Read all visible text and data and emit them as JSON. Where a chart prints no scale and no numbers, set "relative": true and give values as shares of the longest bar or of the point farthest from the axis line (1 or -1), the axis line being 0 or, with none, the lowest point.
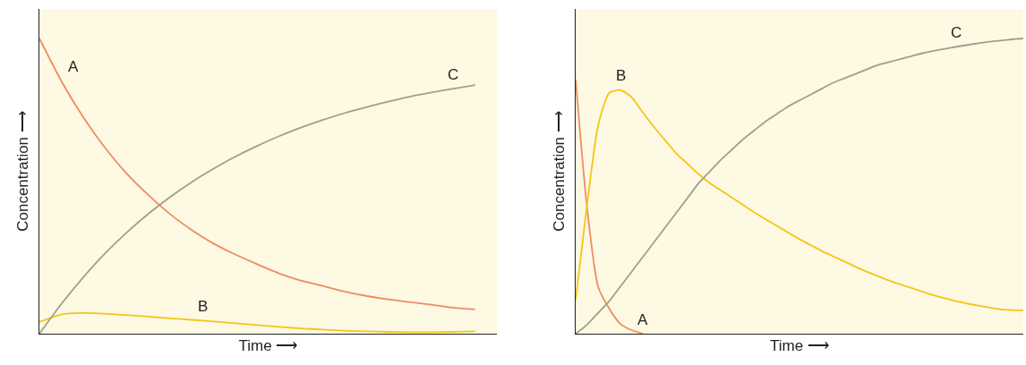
{
  "chart_data": [
    {
      "type": "line",
      "relative": true,
      "xlabel": "Time ⟶",
      "ylabel": "Concentration ⟶",
      "categories": [
        null,
        null,
        null,
        null,
        null,
        null,
        null,
        null,
        null,
        null,
        null,
        null,
        null,
        null,
        null,
        null,
        null,
        null,
        null,
        null,
        null
      ],
      "series": [
        {
          "name": "A",
          "color": "#f08a64",
          "values": [
            1,
            0.857,
            0.735,
            0.631,
            0.543,
            0.47,
            0.405,
            0.351,
            0.305,
            0.268,
            0.235,
            0.204,
            0.18,
            0.162,
            0.143,
            0.128,
            0.116,
            0.107,
            0.098,
            0.088,
            0.082
          ]
        },
        {
          "name": "B",
          "color": "#f5c518",
          "values": [
            0.04,
            0.065,
            0.07,
            0.068,
            0.063,
            0.058,
            0.052,
            0.047,
            0.041,
            0.035,
            0.029,
            0.023,
            0.018,
            0.014,
            0.01,
            0.008,
            0.006,
            0.005,
            0.005,
            0.006,
            0.008
          ]
        },
        {
          "name": "C",
          "color": "#a09f8a",
          "values": [
            0,
            0.1,
            0.19,
            0.271,
            0.342,
            0.406,
            0.463,
            0.514,
            0.559,
            0.6,
            0.636,
            0.669,
            0.698,
            0.724,
            0.747,
            0.767,
            0.786,
            0.803,
            0.817,
            0.83,
            0.842
          ]
        }
      ]
    },
    {
      "type": "line",
      "relative": true,
      "xlabel": "Time ⟶",
      "ylabel": "Concentration ⟶",
      "categories": [
        null,
        null,
        null,
        null,
        null,
        null,
        null,
        null,
        null,
        null,
        null,
        null,
        null,
        null,
        null,
        null,
        null,
        null,
        null,
        null,
        null,
        null,
        null,
        null,
        null,
        null,
        null,
        null,
        null,
        null,
        null,
        null,
        null,
        null,
        null,
        null,
        null,
        null,
        null,
        null,
        null
      ],
      "series": [
        {
          "name": "A",
          "color": "#f08a64",
          "values": [
            0.861,
            0.432,
            0.16,
            0.085,
            0.033,
            0.012,
            0,
            null,
            null,
            null,
            null,
            null,
            null,
            null,
            null,
            null,
            null,
            null,
            null,
            null,
            null,
            null,
            null,
            null,
            null,
            null,
            null,
            null,
            null,
            null,
            null,
            null,
            null,
            null,
            null,
            null,
            null,
            null,
            null,
            null,
            null
          ]
        },
        {
          "name": "B",
          "color": "#f5c518",
          "values": [
            0.115,
            0.432,
            0.704,
            0.816,
            0.825,
            0.801,
            0.749,
            0.7,
            0.655,
            0.61,
            0.575,
            0.54,
            0.51,
            0.485,
            0.46,
            0.435,
            0.41,
            0.387,
            0.365,
            0.342,
            0.32,
            0.3,
            0.28,
            0.262,
            0.245,
            0.227,
            0.21,
            0.195,
            0.18,
            0.167,
            0.155,
            0.142,
            0.13,
            0.12,
            0.11,
            0.102,
            0.095,
            0.088,
            0.082,
            0.08,
            0.079
          ]
        },
        {
          "name": "C",
          "color": "#a09f8a",
          "values": [
            0,
            0.03,
            0.07,
            0.11,
            0.16,
            0.21,
            0.26,
            0.31,
            0.36,
            0.41,
            0.46,
            0.51,
            0.55,
            0.59,
            0.625,
            0.66,
            0.69,
            0.72,
            0.745,
            0.77,
            0.79,
            0.81,
            0.83,
            0.85,
            0.865,
            0.88,
            0.895,
            0.91,
            0.92,
            0.93,
            0.94,
            0.95,
            0.958,
            0.965,
            0.972,
            0.978,
            0.984,
            0.989,
            0.993,
            0.997,
            1
          ]
        }
      ]
    }
  ]
}
